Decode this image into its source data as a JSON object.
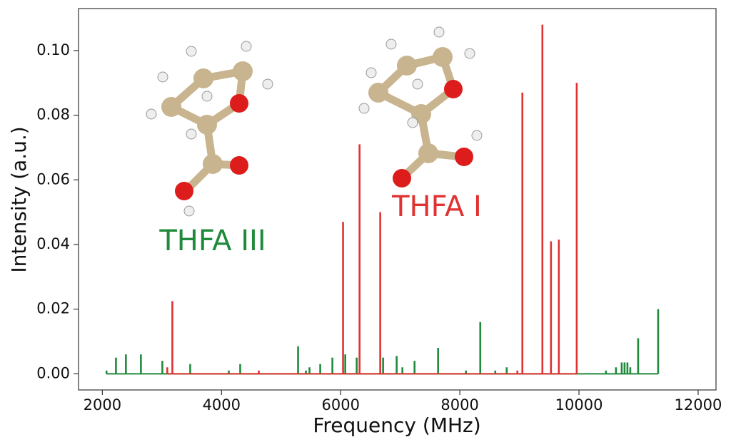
{
  "chart_data": {
    "type": "stick",
    "x_label": "Frequency (MHz)",
    "y_label": "Intensity (a.u.)",
    "xlim": [
      1600,
      12300
    ],
    "ylim": [
      -0.005,
      0.113
    ],
    "xticks": [
      2000,
      4000,
      6000,
      8000,
      10000,
      12000
    ],
    "yticks": [
      {
        "value": 0,
        "label": "0.00"
      },
      0.02,
      0.04,
      0.06,
      0.08,
      {
        "value": 0.1,
        "label": "0.10"
      }
    ],
    "grid": false,
    "series": [
      {
        "name": "THFA III",
        "color": "#1f8a3b",
        "x": [
          2070,
          2228,
          2395,
          2647,
          3007,
          3475,
          4122,
          4314,
          5285,
          5417,
          5477,
          5657,
          5861,
          6077,
          6269,
          6712,
          6940,
          7036,
          7240,
          7635,
          8103,
          8343,
          8595,
          8787,
          10453,
          10621,
          10717,
          10765,
          10813,
          10861,
          10993,
          11329
        ],
        "values": [
          0.001,
          0.005,
          0.006,
          0.006,
          0.004,
          0.003,
          0.001,
          0.003,
          0.0085,
          0.001,
          0.002,
          0.003,
          0.005,
          0.006,
          0.005,
          0.005,
          0.0055,
          0.002,
          0.004,
          0.008,
          0.001,
          0.016,
          0.001,
          0.002,
          0.001,
          0.002,
          0.0035,
          0.0035,
          0.0035,
          0.002,
          0.011,
          0.02
        ]
      },
      {
        "name": "THFA I",
        "color": "#e03232",
        "x": [
          3090,
          3175,
          4626,
          6040,
          6317,
          6664,
          8966,
          9050,
          9386,
          9530,
          9662,
          9962
        ],
        "values": [
          0.002,
          0.0225,
          0.001,
          0.047,
          0.071,
          0.05,
          0.001,
          0.087,
          0.108,
          0.041,
          0.0415,
          0.09
        ]
      }
    ]
  }
}
